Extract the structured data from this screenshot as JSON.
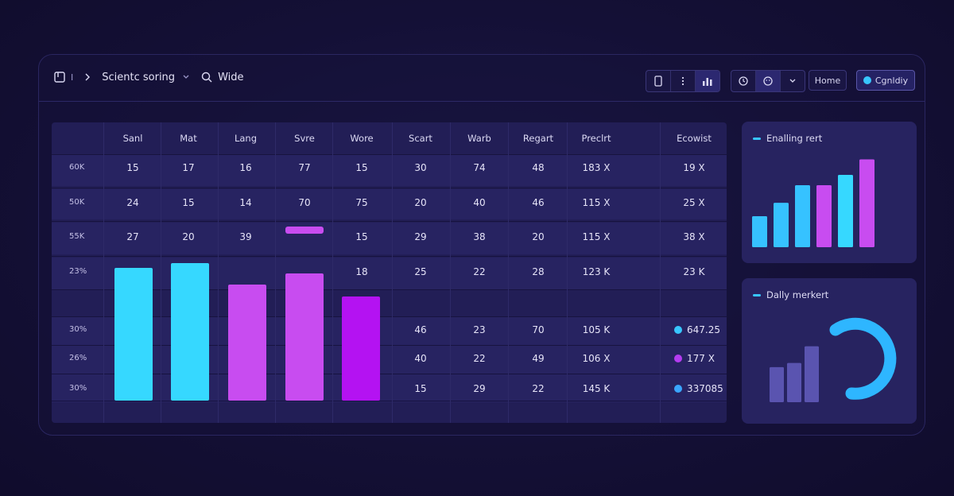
{
  "topbar": {
    "cursor_text": "I",
    "app_name": "Scientc soring",
    "search_label": "Wide",
    "home_label": "Home",
    "primary_label": "Cgnldiy"
  },
  "table": {
    "headers": [
      "Sanl",
      "Mat",
      "Lang",
      "Svre",
      "Wore",
      "Scart",
      "Warb",
      "Regart",
      "Preclrt",
      "Ecowist"
    ],
    "row_labels": [
      "60K",
      "50K",
      "55K",
      "23%",
      "",
      "30%",
      "26%",
      "30%"
    ],
    "rows": [
      [
        "15",
        "17",
        "16",
        "77",
        "15",
        "30",
        "74",
        "48",
        "183 X",
        "19 X"
      ],
      [
        "24",
        "15",
        "14",
        "70",
        "75",
        "20",
        "40",
        "46",
        "115 X",
        "25 X"
      ],
      [
        "27",
        "20",
        "39",
        "",
        "15",
        "29",
        "38",
        "20",
        "115 X",
        "38 X"
      ],
      [
        "",
        "",
        "",
        "",
        "18",
        "25",
        "22",
        "28",
        "123 K",
        "23 K"
      ],
      [
        "",
        "",
        "",
        "",
        "",
        "",
        "",
        "",
        "",
        ""
      ],
      [
        "",
        "",
        "",
        "",
        "",
        "46",
        "23",
        "70",
        "105 K",
        ""
      ],
      [
        "",
        "",
        "",
        "",
        "",
        "40",
        "22",
        "49",
        "106 X",
        ""
      ],
      [
        "",
        "",
        "",
        "",
        "",
        "15",
        "29",
        "22",
        "145 K",
        ""
      ]
    ],
    "legend": [
      {
        "label": "647.25",
        "color": "#38c6ff"
      },
      {
        "label": "177 X",
        "color": "#b43cf0"
      },
      {
        "label": "337085",
        "color": "#3aa6ff"
      }
    ],
    "bars": {
      "scale_max": 100,
      "values": [
        88,
        91,
        77,
        84,
        69
      ],
      "colors": [
        "#36d8ff",
        "#36d8ff",
        "#c84cf0",
        "#c84cf0",
        "#b412f2"
      ],
      "marker_value": 70
    }
  },
  "card1": {
    "title": "Enalling rert",
    "values": [
      30,
      43,
      60,
      60,
      70,
      85
    ],
    "colors": [
      "#36c2ff",
      "#36c2ff",
      "#36c2ff",
      "#c84cf0",
      "#36d8ff",
      "#c84cf0"
    ],
    "max": 100
  },
  "card2": {
    "title": "Dally merkert",
    "bars": [
      42,
      47,
      67
    ],
    "max": 100,
    "bar_color": "#5a54b0",
    "arc_color": "#2eb6ff"
  }
}
